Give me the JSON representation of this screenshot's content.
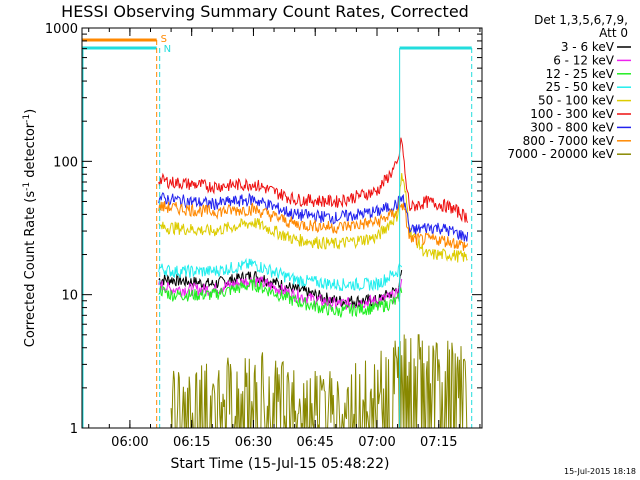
{
  "chart_data": {
    "type": "line",
    "title": "HESSI Observing Summary Count Rates, Corrected",
    "xlabel": "Start Time (15-Jul-15 05:48:22)",
    "ylabel_main": "Corrected Count Rate (s",
    "ylabel_sup1": "-1",
    "ylabel_mid": " detector",
    "ylabel_sup2": "-1",
    "ylabel_end": ")",
    "yscale": "log",
    "ylim": [
      1,
      1000
    ],
    "xlim": [
      "05:48:22",
      "07:25:30"
    ],
    "x_ticks": [
      "06:00",
      "06:15",
      "06:30",
      "06:45",
      "07:00",
      "07:15"
    ],
    "y_ticks": [
      "1",
      "10",
      "100",
      "1000"
    ],
    "legend": {
      "header1": "Det 1,3,5,6,7,9,",
      "header2": "Att 0",
      "placement": "right"
    },
    "flags": [
      {
        "label": "S",
        "color": "#ff8800"
      },
      {
        "label": "N",
        "color": "#22dddd"
      }
    ],
    "timestamp": "15-Jul-2015 18:18",
    "series": [
      {
        "name": "3 - 6 keV",
        "color": "#000000",
        "points": [
          [
            "06:07",
            13
          ],
          [
            "06:10",
            13
          ],
          [
            "06:20",
            12
          ],
          [
            "06:30",
            14
          ],
          [
            "06:40",
            11
          ],
          [
            "06:50",
            9
          ],
          [
            "07:00",
            9
          ],
          [
            "07:05",
            11
          ],
          [
            "07:06",
            14
          ]
        ]
      },
      {
        "name": "6 - 12 keV",
        "color": "#ee22ee",
        "points": [
          [
            "06:07",
            12
          ],
          [
            "06:10",
            11
          ],
          [
            "06:20",
            11
          ],
          [
            "06:30",
            13
          ],
          [
            "06:40",
            10
          ],
          [
            "06:50",
            8.5
          ],
          [
            "07:00",
            9
          ],
          [
            "07:05",
            10
          ],
          [
            "07:06",
            12
          ]
        ]
      },
      {
        "name": "12 - 25 keV",
        "color": "#22ee22",
        "points": [
          [
            "06:07",
            11
          ],
          [
            "06:10",
            10
          ],
          [
            "06:20",
            10
          ],
          [
            "06:30",
            12
          ],
          [
            "06:40",
            9
          ],
          [
            "06:50",
            7.5
          ],
          [
            "07:00",
            8
          ],
          [
            "07:05",
            9
          ],
          [
            "07:06",
            11
          ]
        ]
      },
      {
        "name": "25 - 50 keV",
        "color": "#22eeee",
        "points": [
          [
            "06:07",
            16
          ],
          [
            "06:10",
            15
          ],
          [
            "06:20",
            15
          ],
          [
            "06:30",
            17
          ],
          [
            "06:40",
            13
          ],
          [
            "06:50",
            12
          ],
          [
            "07:00",
            12
          ],
          [
            "07:05",
            15
          ],
          [
            "07:06",
            18
          ]
        ]
      },
      {
        "name": "50 - 100 keV",
        "color": "#ddcc00",
        "points": [
          [
            "06:07",
            32
          ],
          [
            "06:10",
            32
          ],
          [
            "06:20",
            30
          ],
          [
            "06:30",
            35
          ],
          [
            "06:40",
            26
          ],
          [
            "06:50",
            24
          ],
          [
            "07:00",
            27
          ],
          [
            "07:05",
            40
          ],
          [
            "07:06",
            80
          ],
          [
            "07:07",
            55
          ],
          [
            "07:08",
            30
          ],
          [
            "07:12",
            20
          ],
          [
            "07:15",
            20
          ],
          [
            "07:18",
            20
          ],
          [
            "07:22",
            19
          ]
        ]
      },
      {
        "name": "100 - 300 keV",
        "color": "#ee1111",
        "points": [
          [
            "06:07",
            73
          ],
          [
            "06:10",
            70
          ],
          [
            "06:20",
            65
          ],
          [
            "06:30",
            68
          ],
          [
            "06:40",
            52
          ],
          [
            "06:50",
            50
          ],
          [
            "07:00",
            60
          ],
          [
            "07:05",
            95
          ],
          [
            "07:06",
            150
          ],
          [
            "07:07",
            70
          ],
          [
            "07:08",
            45
          ],
          [
            "07:12",
            50
          ],
          [
            "07:15",
            48
          ],
          [
            "07:18",
            45
          ],
          [
            "07:22",
            38
          ]
        ]
      },
      {
        "name": "300 - 800 keV",
        "color": "#2222ee",
        "points": [
          [
            "06:07",
            53
          ],
          [
            "06:10",
            52
          ],
          [
            "06:20",
            48
          ],
          [
            "06:30",
            52
          ],
          [
            "06:40",
            40
          ],
          [
            "06:50",
            38
          ],
          [
            "07:00",
            42
          ],
          [
            "07:05",
            48
          ],
          [
            "07:06",
            55
          ],
          [
            "07:07",
            45
          ],
          [
            "07:08",
            30
          ],
          [
            "07:12",
            32
          ],
          [
            "07:15",
            32
          ],
          [
            "07:18",
            30
          ],
          [
            "07:22",
            27
          ]
        ]
      },
      {
        "name": "800 - 7000 keV",
        "color": "#ff8800",
        "points": [
          [
            "06:07",
            46
          ],
          [
            "06:10",
            45
          ],
          [
            "06:20",
            42
          ],
          [
            "06:30",
            44
          ],
          [
            "06:40",
            34
          ],
          [
            "06:50",
            32
          ],
          [
            "07:00",
            35
          ],
          [
            "07:05",
            42
          ],
          [
            "07:06",
            50
          ],
          [
            "07:07",
            38
          ],
          [
            "07:08",
            26
          ],
          [
            "07:12",
            26
          ],
          [
            "07:15",
            26
          ],
          [
            "07:18",
            25
          ],
          [
            "07:22",
            23
          ]
        ]
      },
      {
        "name": "7000 - 20000 keV",
        "color": "#888800",
        "points": [
          [
            "06:10",
            1.5
          ],
          [
            "06:20",
            1.8
          ],
          [
            "06:30",
            2.2
          ],
          [
            "06:40",
            1.6
          ],
          [
            "06:50",
            1.5
          ],
          [
            "07:00",
            2.0
          ],
          [
            "07:06",
            2.8
          ],
          [
            "07:10",
            2.8
          ],
          [
            "07:15",
            2.6
          ],
          [
            "07:22",
            2.5
          ]
        ]
      }
    ]
  }
}
